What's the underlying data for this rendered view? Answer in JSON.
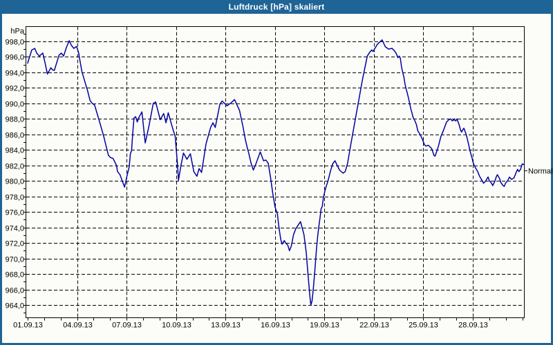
{
  "window": {
    "title": "Luftdruck [hPa] skaliert"
  },
  "chart_data": {
    "type": "line",
    "title": "Luftdruck [hPa] skaliert",
    "xlabel": "",
    "ylabel": "hPa",
    "grid": "dashed",
    "legend_position": "none",
    "colors": {
      "line": "#0000A0",
      "grid": "#000000",
      "frame": "#000000",
      "titlebar": "#1E6496",
      "background": "#FCFDF8"
    },
    "y_axis": {
      "unit": "hPa",
      "tick_values": [
        998,
        996,
        994,
        992,
        990,
        988,
        986,
        984,
        982,
        980,
        978,
        976,
        974,
        972,
        970,
        968,
        966,
        964
      ],
      "tick_labels": [
        "998,0",
        "996,0",
        "994,0",
        "992,0",
        "990,0",
        "988,0",
        "986,0",
        "984,0",
        "982,0",
        "980,0",
        "978,0",
        "976,0",
        "974,0",
        "972,0",
        "970,0",
        "968,0",
        "966,0",
        "964,0"
      ],
      "minor_step": 1,
      "range": [
        962.3,
        999.9
      ]
    },
    "x_axis": {
      "tick_days": [
        1,
        4,
        7,
        10,
        13,
        16,
        19,
        22,
        25,
        28
      ],
      "tick_labels": [
        "01.09.13",
        "04.09.13",
        "07.09.13",
        "10.09.13",
        "13.09.13",
        "16.09.13",
        "19.09.13",
        "22.09.13",
        "25.09.13",
        "28.09.13"
      ],
      "minor_step_days": 1,
      "domain_days": [
        1,
        31.13
      ]
    },
    "annotations": [
      {
        "label": "Normal",
        "value_hpa": 981.3
      }
    ],
    "series": [
      {
        "name": "Luftdruck",
        "color": "#0000A0",
        "points_day_hpa": [
          [
            1.0,
            995.2
          ],
          [
            1.1,
            995.9
          ],
          [
            1.25,
            996.9
          ],
          [
            1.43,
            997.1
          ],
          [
            1.55,
            996.5
          ],
          [
            1.71,
            996.1
          ],
          [
            1.92,
            996.5
          ],
          [
            2.05,
            995.3
          ],
          [
            2.2,
            993.8
          ],
          [
            2.41,
            994.6
          ],
          [
            2.5,
            994.35
          ],
          [
            2.62,
            994.25
          ],
          [
            2.9,
            996.2
          ],
          [
            3.04,
            996.5
          ],
          [
            3.18,
            996.1
          ],
          [
            3.35,
            997.2
          ],
          [
            3.52,
            998.1
          ],
          [
            3.65,
            997.5
          ],
          [
            3.8,
            997.1
          ],
          [
            3.97,
            997.35
          ],
          [
            4.1,
            996.5
          ],
          [
            4.15,
            995.8
          ],
          [
            4.29,
            994.1
          ],
          [
            4.43,
            993.1
          ],
          [
            4.64,
            991.6
          ],
          [
            4.78,
            990.4
          ],
          [
            4.92,
            990.0
          ],
          [
            5.06,
            989.8
          ],
          [
            5.34,
            987.8
          ],
          [
            5.62,
            985.7
          ],
          [
            5.76,
            984.5
          ],
          [
            5.9,
            983.3
          ],
          [
            6.04,
            983.0
          ],
          [
            6.18,
            982.9
          ],
          [
            6.25,
            982.6
          ],
          [
            6.39,
            982.0
          ],
          [
            6.45,
            981.2
          ],
          [
            6.6,
            980.8
          ],
          [
            6.74,
            980.0
          ],
          [
            6.88,
            979.2
          ],
          [
            7.02,
            980.6
          ],
          [
            7.16,
            981.8
          ],
          [
            7.23,
            983.5
          ],
          [
            7.3,
            983.9
          ],
          [
            7.37,
            986.0
          ],
          [
            7.45,
            988.1
          ],
          [
            7.55,
            988.3
          ],
          [
            7.65,
            987.6
          ],
          [
            7.75,
            988.2
          ],
          [
            7.93,
            988.9
          ],
          [
            8.13,
            984.9
          ],
          [
            8.35,
            987.0
          ],
          [
            8.62,
            990.0
          ],
          [
            8.76,
            990.2
          ],
          [
            9.04,
            987.9
          ],
          [
            9.25,
            988.7
          ],
          [
            9.39,
            987.5
          ],
          [
            9.53,
            988.8
          ],
          [
            9.74,
            987.2
          ],
          [
            9.95,
            985.7
          ],
          [
            10.08,
            982.3
          ],
          [
            10.15,
            980.1
          ],
          [
            10.3,
            982.0
          ],
          [
            10.45,
            983.6
          ],
          [
            10.66,
            982.8
          ],
          [
            10.87,
            983.5
          ],
          [
            11.08,
            981.2
          ],
          [
            11.27,
            980.6
          ],
          [
            11.4,
            981.6
          ],
          [
            11.55,
            981.1
          ],
          [
            11.82,
            984.8
          ],
          [
            12.1,
            986.9
          ],
          [
            12.24,
            987.5
          ],
          [
            12.38,
            986.9
          ],
          [
            12.66,
            989.9
          ],
          [
            12.8,
            990.3
          ],
          [
            13.1,
            989.7
          ],
          [
            13.35,
            990.1
          ],
          [
            13.55,
            990.5
          ],
          [
            13.85,
            989.1
          ],
          [
            14.06,
            987.0
          ],
          [
            14.2,
            985.4
          ],
          [
            14.34,
            984.1
          ],
          [
            14.41,
            983.6
          ],
          [
            14.55,
            982.3
          ],
          [
            14.69,
            981.4
          ],
          [
            14.83,
            982.1
          ],
          [
            15.11,
            983.75
          ],
          [
            15.31,
            982.6
          ],
          [
            15.45,
            982.7
          ],
          [
            15.59,
            982.3
          ],
          [
            15.73,
            980.5
          ],
          [
            15.87,
            978.4
          ],
          [
            16.01,
            976.6
          ],
          [
            16.15,
            975.75
          ],
          [
            16.22,
            974.4
          ],
          [
            16.29,
            973.3
          ],
          [
            16.36,
            972.4
          ],
          [
            16.43,
            971.85
          ],
          [
            16.57,
            972.3
          ],
          [
            16.65,
            972.0
          ],
          [
            16.78,
            971.7
          ],
          [
            16.88,
            971.0
          ],
          [
            16.99,
            971.6
          ],
          [
            17.13,
            973.1
          ],
          [
            17.27,
            973.85
          ],
          [
            17.55,
            974.75
          ],
          [
            17.76,
            973.1
          ],
          [
            17.9,
            970.7
          ],
          [
            17.97,
            968.9
          ],
          [
            18.04,
            967.1
          ],
          [
            18.11,
            965.3
          ],
          [
            18.18,
            964.0
          ],
          [
            18.25,
            964.5
          ],
          [
            18.32,
            965.95
          ],
          [
            18.39,
            967.7
          ],
          [
            18.46,
            969.5
          ],
          [
            18.52,
            971.3
          ],
          [
            18.59,
            972.8
          ],
          [
            18.66,
            974.1
          ],
          [
            18.73,
            975.2
          ],
          [
            18.8,
            976.4
          ],
          [
            18.87,
            976.7
          ],
          [
            18.94,
            977.9
          ],
          [
            19.08,
            979.1
          ],
          [
            19.22,
            980.0
          ],
          [
            19.36,
            981.2
          ],
          [
            19.5,
            982.2
          ],
          [
            19.64,
            982.6
          ],
          [
            19.78,
            982.0
          ],
          [
            19.92,
            981.4
          ],
          [
            20.13,
            981.0
          ],
          [
            20.26,
            981.2
          ],
          [
            20.41,
            982.3
          ],
          [
            20.55,
            984.1
          ],
          [
            20.69,
            985.75
          ],
          [
            20.83,
            987.4
          ],
          [
            20.97,
            989.1
          ],
          [
            21.1,
            990.6
          ],
          [
            21.3,
            993.0
          ],
          [
            21.6,
            996.1
          ],
          [
            21.75,
            996.6
          ],
          [
            21.87,
            996.9
          ],
          [
            21.95,
            996.7
          ],
          [
            22.22,
            997.65
          ],
          [
            22.5,
            998.2
          ],
          [
            22.7,
            997.3
          ],
          [
            22.9,
            997.0
          ],
          [
            23.1,
            997.1
          ],
          [
            23.2,
            996.9
          ],
          [
            23.33,
            996.55
          ],
          [
            23.47,
            995.9
          ],
          [
            23.55,
            996.1
          ],
          [
            23.61,
            995.8
          ],
          [
            23.68,
            994.7
          ],
          [
            23.75,
            994.0
          ],
          [
            23.82,
            993.4
          ],
          [
            23.89,
            992.5
          ],
          [
            23.96,
            991.85
          ],
          [
            24.03,
            991.3
          ],
          [
            24.1,
            990.7
          ],
          [
            24.17,
            990.0
          ],
          [
            24.24,
            989.3
          ],
          [
            24.31,
            988.8
          ],
          [
            24.38,
            988.2
          ],
          [
            24.52,
            987.6
          ],
          [
            24.59,
            987.2
          ],
          [
            24.66,
            986.5
          ],
          [
            24.8,
            986.0
          ],
          [
            24.94,
            985.4
          ],
          [
            25.01,
            985.0
          ],
          [
            25.08,
            984.65
          ],
          [
            25.15,
            984.5
          ],
          [
            25.3,
            984.6
          ],
          [
            25.5,
            984.2
          ],
          [
            25.57,
            983.8
          ],
          [
            25.64,
            983.3
          ],
          [
            25.71,
            983.2
          ],
          [
            25.78,
            983.6
          ],
          [
            25.92,
            984.5
          ],
          [
            25.99,
            985.1
          ],
          [
            26.06,
            985.7
          ],
          [
            26.2,
            986.4
          ],
          [
            26.34,
            987.2
          ],
          [
            26.41,
            987.6
          ],
          [
            26.55,
            987.9
          ],
          [
            26.65,
            988.0
          ],
          [
            26.76,
            987.75
          ],
          [
            26.85,
            987.9
          ],
          [
            26.97,
            987.75
          ],
          [
            27.04,
            988.0
          ],
          [
            27.11,
            987.6
          ],
          [
            27.18,
            987.2
          ],
          [
            27.25,
            986.6
          ],
          [
            27.32,
            986.3
          ],
          [
            27.39,
            986.6
          ],
          [
            27.46,
            986.8
          ],
          [
            27.6,
            986.0
          ],
          [
            27.67,
            985.4
          ],
          [
            27.74,
            984.8
          ],
          [
            27.81,
            984.1
          ],
          [
            27.88,
            983.5
          ],
          [
            27.95,
            983.0
          ],
          [
            28.02,
            982.4
          ],
          [
            28.09,
            982.0
          ],
          [
            28.16,
            981.7
          ],
          [
            28.3,
            981.2
          ],
          [
            28.37,
            980.8
          ],
          [
            28.44,
            980.5
          ],
          [
            28.58,
            980.0
          ],
          [
            28.65,
            979.7
          ],
          [
            28.79,
            980.0
          ],
          [
            28.86,
            980.3
          ],
          [
            28.93,
            980.5
          ],
          [
            29.0,
            980.05
          ],
          [
            29.14,
            979.7
          ],
          [
            29.21,
            979.4
          ],
          [
            29.35,
            980.0
          ],
          [
            29.42,
            980.5
          ],
          [
            29.49,
            980.8
          ],
          [
            29.63,
            980.3
          ],
          [
            29.7,
            979.8
          ],
          [
            29.84,
            979.4
          ],
          [
            29.91,
            979.3
          ],
          [
            29.98,
            979.7
          ],
          [
            30.12,
            980.05
          ],
          [
            30.23,
            980.5
          ],
          [
            30.35,
            980.2
          ],
          [
            30.5,
            980.4
          ],
          [
            30.65,
            981.2
          ],
          [
            30.72,
            981.5
          ],
          [
            30.8,
            981.2
          ],
          [
            30.9,
            981.5
          ],
          [
            31.0,
            982.2
          ],
          [
            31.1,
            982.1
          ]
        ]
      }
    ]
  }
}
